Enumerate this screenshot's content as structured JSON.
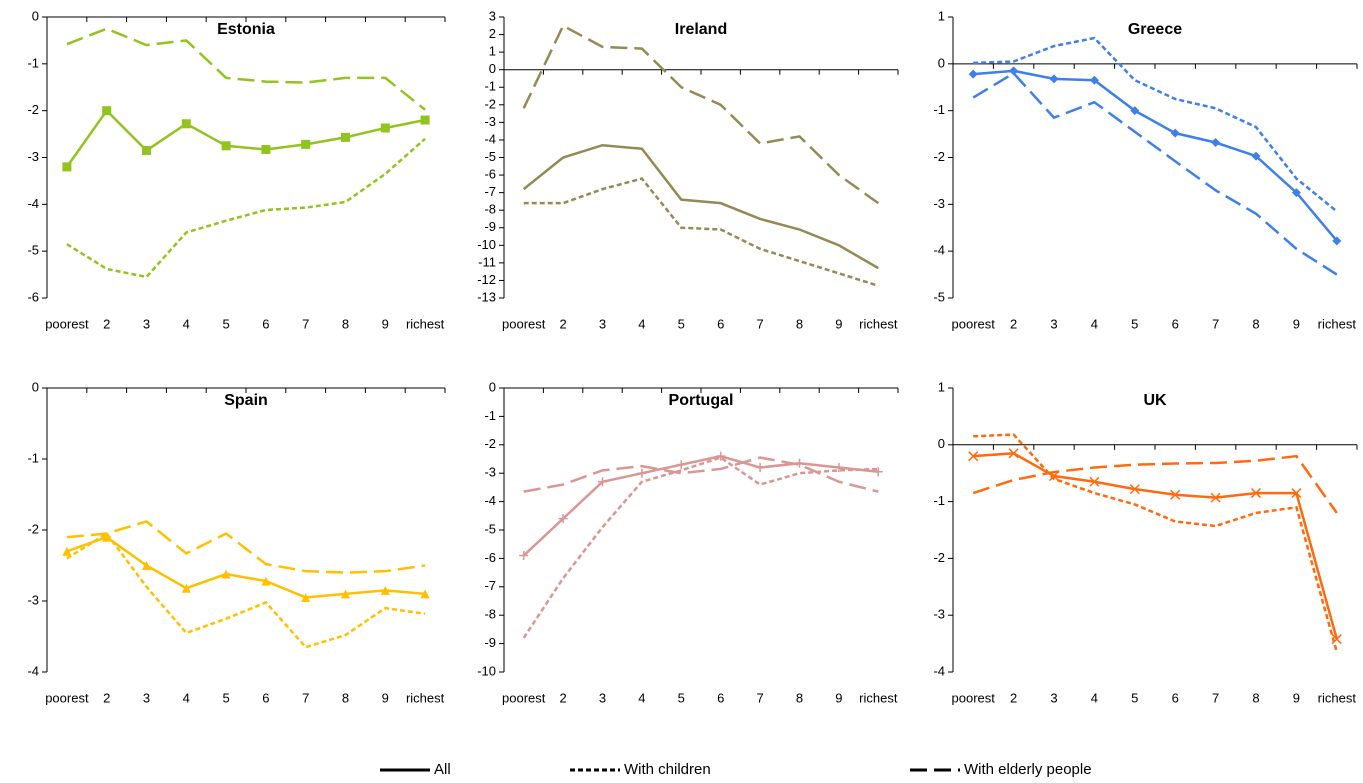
{
  "chart_data": [
    {
      "type": "line",
      "title": "Estonia",
      "categories": [
        "poorest",
        "2",
        "3",
        "4",
        "5",
        "6",
        "7",
        "8",
        "9",
        "richest"
      ],
      "ylim": [
        -6,
        0
      ],
      "yticks": [
        0,
        -1,
        -2,
        -3,
        -4,
        -5,
        -6
      ],
      "series": [
        {
          "style": "solid",
          "color": "#92c31e",
          "marker": "square",
          "values": [
            -3.2,
            -2.0,
            -2.85,
            -2.28,
            -2.75,
            -2.83,
            -2.72,
            -2.57,
            -2.37,
            -2.2
          ]
        },
        {
          "style": "short-dash",
          "color": "#92c31e",
          "values": [
            -4.85,
            -5.38,
            -5.55,
            -4.6,
            -4.35,
            -4.12,
            -4.07,
            -3.95,
            -3.35,
            -2.6
          ]
        },
        {
          "style": "long-dash",
          "color": "#92c31e",
          "values": [
            -0.58,
            -0.25,
            -0.6,
            -0.5,
            -1.3,
            -1.38,
            -1.4,
            -1.3,
            -1.3,
            -1.98
          ]
        }
      ]
    },
    {
      "type": "line",
      "title": "Ireland",
      "categories": [
        "poorest",
        "2",
        "3",
        "4",
        "5",
        "6",
        "7",
        "8",
        "9",
        "richest"
      ],
      "ylim": [
        -13,
        3
      ],
      "yticks": [
        3,
        2,
        1,
        0,
        -1,
        -2,
        -3,
        -4,
        -5,
        -6,
        -7,
        -8,
        -9,
        -10,
        -11,
        -12,
        -13
      ],
      "series": [
        {
          "style": "solid",
          "color": "#948a54",
          "values": [
            -6.8,
            -5.0,
            -4.3,
            -4.5,
            -7.4,
            -7.6,
            -8.5,
            -9.1,
            -10.0,
            -11.3
          ]
        },
        {
          "style": "short-dash",
          "color": "#948a54",
          "values": [
            -7.6,
            -7.6,
            -6.8,
            -6.2,
            -9.0,
            -9.1,
            -10.2,
            -10.9,
            -11.6,
            -12.3
          ]
        },
        {
          "style": "long-dash",
          "color": "#948a54",
          "values": [
            -2.2,
            2.5,
            1.3,
            1.2,
            -1.0,
            -2.0,
            -4.2,
            -3.8,
            -6.0,
            -7.6
          ]
        }
      ]
    },
    {
      "type": "line",
      "title": "Greece",
      "categories": [
        "poorest",
        "2",
        "3",
        "4",
        "5",
        "6",
        "7",
        "8",
        "9",
        "richest"
      ],
      "ylim": [
        -5,
        1
      ],
      "yticks": [
        1,
        0,
        -1,
        -2,
        -3,
        -4,
        -5
      ],
      "series": [
        {
          "style": "solid",
          "color": "#3f7fe8",
          "marker": "diamond",
          "values": [
            -0.22,
            -0.15,
            -0.32,
            -0.35,
            -1.0,
            -1.48,
            -1.68,
            -1.97,
            -2.75,
            -3.78
          ]
        },
        {
          "style": "short-dash",
          "color": "#3f7fe8",
          "values": [
            0.02,
            0.05,
            0.38,
            0.55,
            -0.35,
            -0.75,
            -0.95,
            -1.35,
            -2.45,
            -3.15
          ]
        },
        {
          "style": "long-dash",
          "color": "#3f7fe8",
          "values": [
            -0.72,
            -0.2,
            -1.15,
            -0.82,
            -1.45,
            -2.08,
            -2.7,
            -3.2,
            -3.95,
            -4.5
          ]
        }
      ]
    },
    {
      "type": "line",
      "title": "Spain",
      "categories": [
        "poorest",
        "2",
        "3",
        "4",
        "5",
        "6",
        "7",
        "8",
        "9",
        "richest"
      ],
      "ylim": [
        -4,
        0
      ],
      "yticks": [
        0,
        -1,
        -2,
        -3,
        -4
      ],
      "series": [
        {
          "style": "solid",
          "color": "#ffc000",
          "marker": "triangle",
          "values": [
            -2.3,
            -2.1,
            -2.5,
            -2.82,
            -2.62,
            -2.72,
            -2.95,
            -2.9,
            -2.85,
            -2.9
          ]
        },
        {
          "style": "short-dash",
          "color": "#ffc000",
          "values": [
            -2.4,
            -2.05,
            -2.8,
            -3.45,
            -3.25,
            -3.02,
            -3.65,
            -3.48,
            -3.1,
            -3.18
          ]
        },
        {
          "style": "long-dash",
          "color": "#ffc000",
          "values": [
            -2.1,
            -2.05,
            -1.88,
            -2.33,
            -2.05,
            -2.48,
            -2.58,
            -2.6,
            -2.58,
            -2.5
          ]
        }
      ]
    },
    {
      "type": "line",
      "title": "Portugal",
      "categories": [
        "poorest",
        "2",
        "3",
        "4",
        "5",
        "6",
        "7",
        "8",
        "9",
        "richest"
      ],
      "ylim": [
        -10,
        0
      ],
      "yticks": [
        0,
        -1,
        -2,
        -3,
        -4,
        -5,
        -6,
        -7,
        -8,
        -9,
        -10
      ],
      "series": [
        {
          "style": "solid",
          "color": "#d99694",
          "marker": "plus",
          "values": [
            -5.9,
            -4.6,
            -3.3,
            -3.0,
            -2.7,
            -2.4,
            -2.8,
            -2.65,
            -2.8,
            -2.95
          ]
        },
        {
          "style": "short-dash",
          "color": "#d99694",
          "values": [
            -8.8,
            -6.7,
            -4.9,
            -3.3,
            -2.9,
            -2.45,
            -3.4,
            -3.0,
            -2.9,
            -2.85
          ]
        },
        {
          "style": "long-dash",
          "color": "#d99694",
          "values": [
            -3.65,
            -3.4,
            -2.9,
            -2.75,
            -3.0,
            -2.85,
            -2.45,
            -2.7,
            -3.3,
            -3.65
          ]
        }
      ]
    },
    {
      "type": "line",
      "title": "UK",
      "categories": [
        "poorest",
        "2",
        "3",
        "4",
        "5",
        "6",
        "7",
        "8",
        "9",
        "richest"
      ],
      "ylim": [
        -4,
        1
      ],
      "yticks": [
        1,
        0,
        -1,
        -2,
        -3,
        -4
      ],
      "series": [
        {
          "style": "solid",
          "color": "#ff6a0e",
          "marker": "x",
          "values": [
            -0.2,
            -0.15,
            -0.55,
            -0.65,
            -0.78,
            -0.88,
            -0.93,
            -0.85,
            -0.85,
            -3.42
          ]
        },
        {
          "style": "short-dash",
          "color": "#ff6a0e",
          "values": [
            0.15,
            0.18,
            -0.6,
            -0.85,
            -1.05,
            -1.35,
            -1.43,
            -1.2,
            -1.1,
            -3.65
          ]
        },
        {
          "style": "long-dash",
          "color": "#ff6a0e",
          "values": [
            -0.85,
            -0.62,
            -0.48,
            -0.4,
            -0.35,
            -0.33,
            -0.32,
            -0.28,
            -0.2,
            -1.2
          ]
        }
      ]
    }
  ],
  "legend": [
    {
      "name": "All",
      "style": "solid"
    },
    {
      "name": "With children",
      "style": "short-dash"
    },
    {
      "name": "With elderly people",
      "style": "long-dash"
    }
  ]
}
